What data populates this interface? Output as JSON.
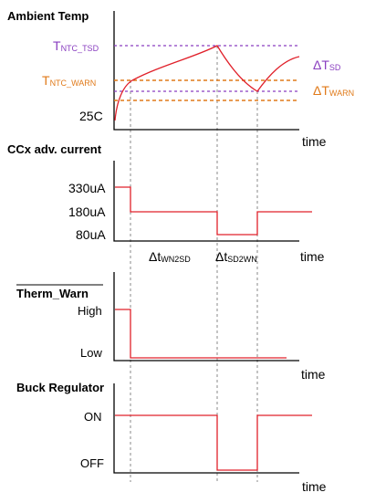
{
  "panels": {
    "ambient": {
      "title": "Ambient Temp",
      "t_ntc_tsd": {
        "main": "T",
        "sub": "NTC_TSD"
      },
      "t_ntc_warn": {
        "main": "T",
        "sub": "NTC_WARN"
      },
      "base_temp": "25C",
      "delta_tsd": {
        "main": "ΔT",
        "sub": "SD"
      },
      "delta_twarn": {
        "main": "ΔT",
        "sub": "WARN"
      },
      "xlabel": "time"
    },
    "current": {
      "title": "CCx adv. current",
      "levels": [
        "330uA",
        "180uA",
        "80uA"
      ],
      "dt_wn2sd": {
        "main": "Δt",
        "sub": "WN2SD"
      },
      "dt_sd2wn": {
        "main": "Δt",
        "sub": "SD2WN"
      },
      "xlabel": "time"
    },
    "therm_warn": {
      "title": "Therm_Warn",
      "levels": [
        "High",
        "Low"
      ],
      "xlabel": "time"
    },
    "buck": {
      "title": "Buck Regulator",
      "levels": [
        "ON",
        "OFF"
      ],
      "xlabel": "time"
    }
  },
  "colors": {
    "signal": "#e0202a",
    "tsd_line": "#8a3fc0",
    "warn_line": "#e07a1a",
    "guide": "#888888"
  }
}
